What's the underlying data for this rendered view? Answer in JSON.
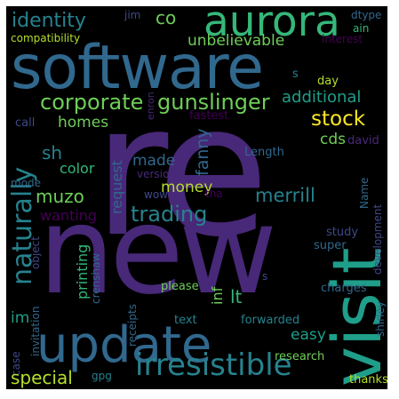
{
  "words": {
    "re": "re",
    "new": "new",
    "software": "software",
    "visit": "visit",
    "update": "update",
    "aurora": "aurora",
    "irresistible": "irresistible",
    "naturally": "naturally",
    "corporate": "corporate",
    "gunslinger": "gunslinger",
    "trading": "trading",
    "identity": "identity",
    "stock": "stock",
    "merrill": "merrill",
    "additional": "additional",
    "unbelievable": "unbelievable",
    "co": "co",
    "compatibility": "compatibility",
    "jim": "jim",
    "dtype": "dtype",
    "ain": "ain",
    "interest": "interest",
    "day": "day",
    "enron": "enron",
    "s_top": "s",
    "homes": "homes",
    "call": "call",
    "fastest": "fastest",
    "cds": "cds",
    "david": "david",
    "sh": "sh",
    "fanny": "fanny",
    "color": "color",
    "made": "made",
    "request": "request",
    "length": "Length",
    "mode": "mode",
    "version": "version",
    "muzo": "muzo",
    "money": "money",
    "wow": "wow",
    "tha": "tha",
    "name": "Name",
    "development": "development",
    "wanting": "wanting",
    "study": "study",
    "object": "object",
    "super": "super",
    "printing": "printing",
    "inf": "inf",
    "crenshaw": "crenshaw",
    "please": "please",
    "s_mid": "s",
    "lt": "lt",
    "im": "im",
    "charges": "charges",
    "shirley": "shirley",
    "invitation": "invitation",
    "receipts": "receipts",
    "text": "text",
    "forwarded": "forwarded",
    "easy": "easy",
    "case": "case",
    "research": "research",
    "special": "special",
    "gpg": "gpg",
    "thanks": "thanks"
  }
}
